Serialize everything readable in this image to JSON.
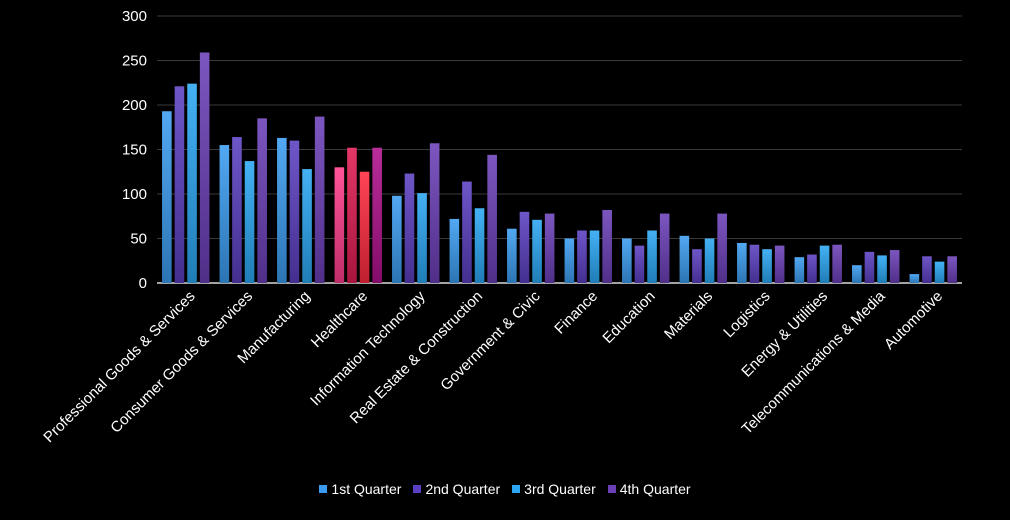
{
  "chart_data": {
    "type": "bar",
    "categories": [
      "Professional Goods & Services",
      "Consumer Goods & Services",
      "Manufacturing",
      "Healthcare",
      "Information Technology",
      "Real Estate & Construction",
      "Government & Civic",
      "Finance",
      "Education",
      "Materials",
      "Logistics",
      "Energy & Utilities",
      "Telecommunications & Media",
      "Automotive"
    ],
    "series": [
      {
        "name": "1st Quarter",
        "color": "#3a9cf0",
        "values": [
          193,
          155,
          163,
          130,
          98,
          72,
          61,
          50,
          50,
          53,
          45,
          29,
          20,
          10
        ]
      },
      {
        "name": "2nd Quarter",
        "color": "#5a3fc0",
        "values": [
          221,
          164,
          160,
          152,
          123,
          114,
          80,
          59,
          42,
          38,
          43,
          32,
          35,
          30
        ]
      },
      {
        "name": "3rd Quarter",
        "color": "#2aa6f2",
        "values": [
          224,
          137,
          128,
          125,
          101,
          84,
          71,
          59,
          59,
          50,
          38,
          42,
          31,
          24
        ]
      },
      {
        "name": "4th Quarter",
        "color": "#6a3fb6",
        "values": [
          259,
          185,
          187,
          152,
          157,
          144,
          78,
          82,
          78,
          78,
          42,
          43,
          37,
          30
        ]
      }
    ],
    "highlight_colors": {
      "Healthcare": [
        "#ff3d8a",
        "#e01c52",
        "#ff2a3e",
        "#b0108c"
      ]
    },
    "yticks": [
      0,
      50,
      100,
      150,
      200,
      250,
      300
    ],
    "ylim": [
      0,
      300
    ],
    "grid": true,
    "legend_position": "bottom-center",
    "title": "",
    "xlabel": "",
    "ylabel": ""
  }
}
